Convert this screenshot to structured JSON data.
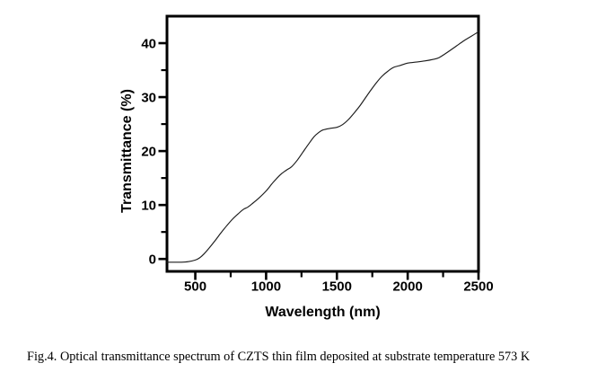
{
  "figure": {
    "caption": "Fig.4. Optical transmittance spectrum of CZTS thin film deposited at substrate temperature 573 K"
  },
  "chart_data": {
    "type": "line",
    "title": "",
    "xlabel": "Wavelength (nm)",
    "ylabel": "Transmittance (%)",
    "xlim": [
      300,
      2500
    ],
    "ylim": [
      -2.3,
      45
    ],
    "x_major_ticks": [
      500,
      1000,
      1500,
      2000,
      2500
    ],
    "x_minor_ticks": [
      750,
      1250,
      1750,
      2250
    ],
    "y_major_ticks": [
      0,
      10,
      20,
      30,
      40
    ],
    "y_minor_ticks": [
      5,
      15,
      25,
      35
    ],
    "grid": false,
    "legend": false,
    "frame": "full-box",
    "axis_color": "#000000",
    "line_color": "#1c1c1c",
    "series": [
      {
        "name": "CZTS thin film transmittance at 573 K",
        "x": [
          300,
          350,
          400,
          450,
          500,
          530,
          560,
          600,
          640,
          680,
          720,
          760,
          800,
          840,
          870,
          900,
          950,
          1000,
          1050,
          1100,
          1140,
          1180,
          1220,
          1260,
          1300,
          1340,
          1370,
          1400,
          1450,
          1500,
          1540,
          1580,
          1620,
          1660,
          1700,
          1740,
          1780,
          1820,
          1860,
          1900,
          1950,
          2000,
          2060,
          2120,
          2180,
          2220,
          2280,
          2340,
          2400,
          2450,
          2500
        ],
        "y": [
          -0.6,
          -0.6,
          -0.6,
          -0.5,
          -0.2,
          0.2,
          0.9,
          2.1,
          3.4,
          4.8,
          6.1,
          7.3,
          8.3,
          9.2,
          9.6,
          10.2,
          11.3,
          12.6,
          14.2,
          15.6,
          16.4,
          17.1,
          18.3,
          19.8,
          21.3,
          22.7,
          23.4,
          23.9,
          24.2,
          24.4,
          24.9,
          25.8,
          27.0,
          28.3,
          29.8,
          31.3,
          32.7,
          33.9,
          34.8,
          35.5,
          35.9,
          36.3,
          36.5,
          36.7,
          37.0,
          37.3,
          38.3,
          39.4,
          40.5,
          41.3,
          42.1
        ]
      }
    ]
  }
}
